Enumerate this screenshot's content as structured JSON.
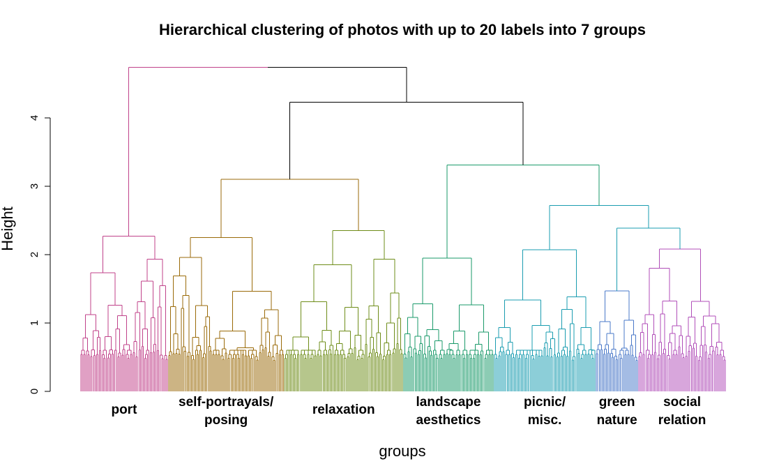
{
  "chart_data": {
    "type": "dendrogram",
    "title": "Hierarchical clustering of photos with up to 20 labels into 7 groups",
    "xlabel": "groups",
    "ylabel": "Height",
    "ylim": [
      0,
      4.75
    ],
    "yticks": [
      0,
      1,
      2,
      3,
      4
    ],
    "grid": false,
    "legend": "none",
    "groups": [
      {
        "label_lines": [
          "port"
        ],
        "color": "#C0428A",
        "top_height": 2.27,
        "leaves": 62
      },
      {
        "label_lines": [
          "self-portrayals/",
          "posing"
        ],
        "color": "#9A6A08",
        "top_height": 2.25,
        "leaves": 82
      },
      {
        "label_lines": [
          "relaxation"
        ],
        "color": "#6E8C18",
        "top_height": 2.35,
        "leaves": 84
      },
      {
        "label_lines": [
          "landscape",
          "aesthetics"
        ],
        "color": "#1A9A6A",
        "top_height": 1.95,
        "leaves": 64
      },
      {
        "label_lines": [
          "picnic/",
          "misc."
        ],
        "color": "#1A9CB0",
        "top_height": 2.07,
        "leaves": 72
      },
      {
        "label_lines": [
          "green",
          "nature"
        ],
        "color": "#4A78C8",
        "top_height": 1.47,
        "leaves": 30
      },
      {
        "label_lines": [
          "social",
          "relation"
        ],
        "color": "#B04EB8",
        "top_height": 2.08,
        "leaves": 62
      }
    ],
    "merges": [
      {
        "height": 3.1,
        "groups": [
          1,
          2
        ]
      },
      {
        "height": 2.39,
        "groups": [
          5,
          6
        ]
      },
      {
        "height": 2.72,
        "groups": [
          4,
          "5+6"
        ]
      },
      {
        "height": 3.31,
        "groups": [
          3,
          "4+5+6"
        ]
      },
      {
        "height": 4.23,
        "groups": [
          "1+2",
          "3+4+5+6"
        ]
      },
      {
        "height": 4.74,
        "groups": [
          0,
          "rest"
        ]
      }
    ],
    "root_color": "#000000"
  }
}
